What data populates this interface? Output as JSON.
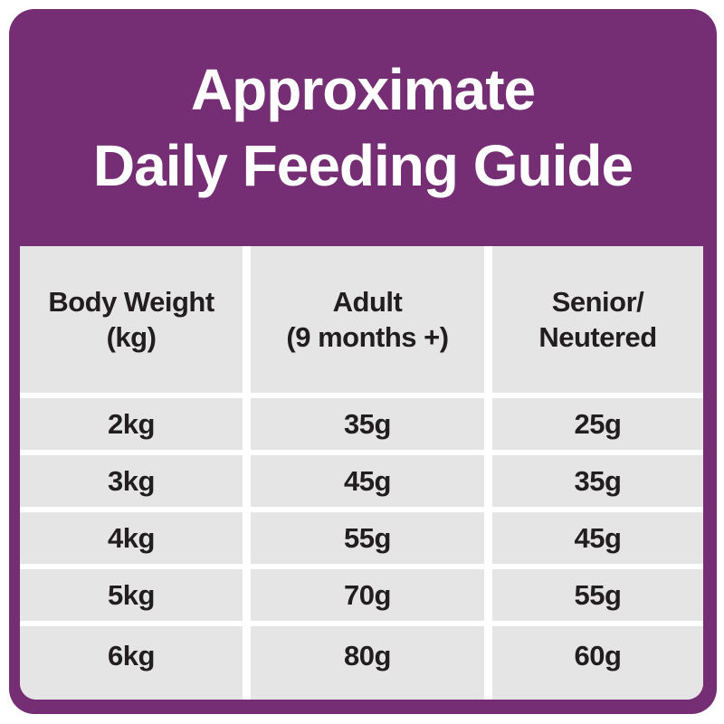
{
  "title": {
    "line1": "Approximate",
    "line2": "Daily Feeding Guide"
  },
  "table": {
    "headers": [
      {
        "line1": "Body Weight",
        "line2": "(kg)"
      },
      {
        "line1": "Adult",
        "line2": "(9 months +)"
      },
      {
        "line1": "Senior/",
        "line2": "Neutered"
      }
    ],
    "rows": [
      {
        "weight": "2kg",
        "adult": "35g",
        "senior": "25g"
      },
      {
        "weight": "3kg",
        "adult": "45g",
        "senior": "35g"
      },
      {
        "weight": "4kg",
        "adult": "55g",
        "senior": "45g"
      },
      {
        "weight": "5kg",
        "adult": "70g",
        "senior": "55g"
      },
      {
        "weight": "6kg",
        "adult": "80g",
        "senior": "60g"
      }
    ]
  },
  "chart_data": {
    "type": "table",
    "title": "Approximate Daily Feeding Guide",
    "columns": [
      "Body Weight (kg)",
      "Adult (9 months +)",
      "Senior/Neutered"
    ],
    "rows": [
      [
        "2kg",
        "35g",
        "25g"
      ],
      [
        "3kg",
        "45g",
        "35g"
      ],
      [
        "4kg",
        "55g",
        "45g"
      ],
      [
        "5kg",
        "70g",
        "55g"
      ],
      [
        "6kg",
        "80g",
        "60g"
      ]
    ],
    "body_weight_kg": [
      2,
      3,
      4,
      5,
      6
    ],
    "adult_g": [
      35,
      45,
      55,
      70,
      80
    ],
    "senior_neutered_g": [
      25,
      35,
      45,
      55,
      60
    ]
  },
  "colors": {
    "purple": "#752D73",
    "cell_gray": "#E6E5E5",
    "text_dark": "#221E1F",
    "background": "#FFFFFF",
    "title_text": "#FFFFFF"
  }
}
